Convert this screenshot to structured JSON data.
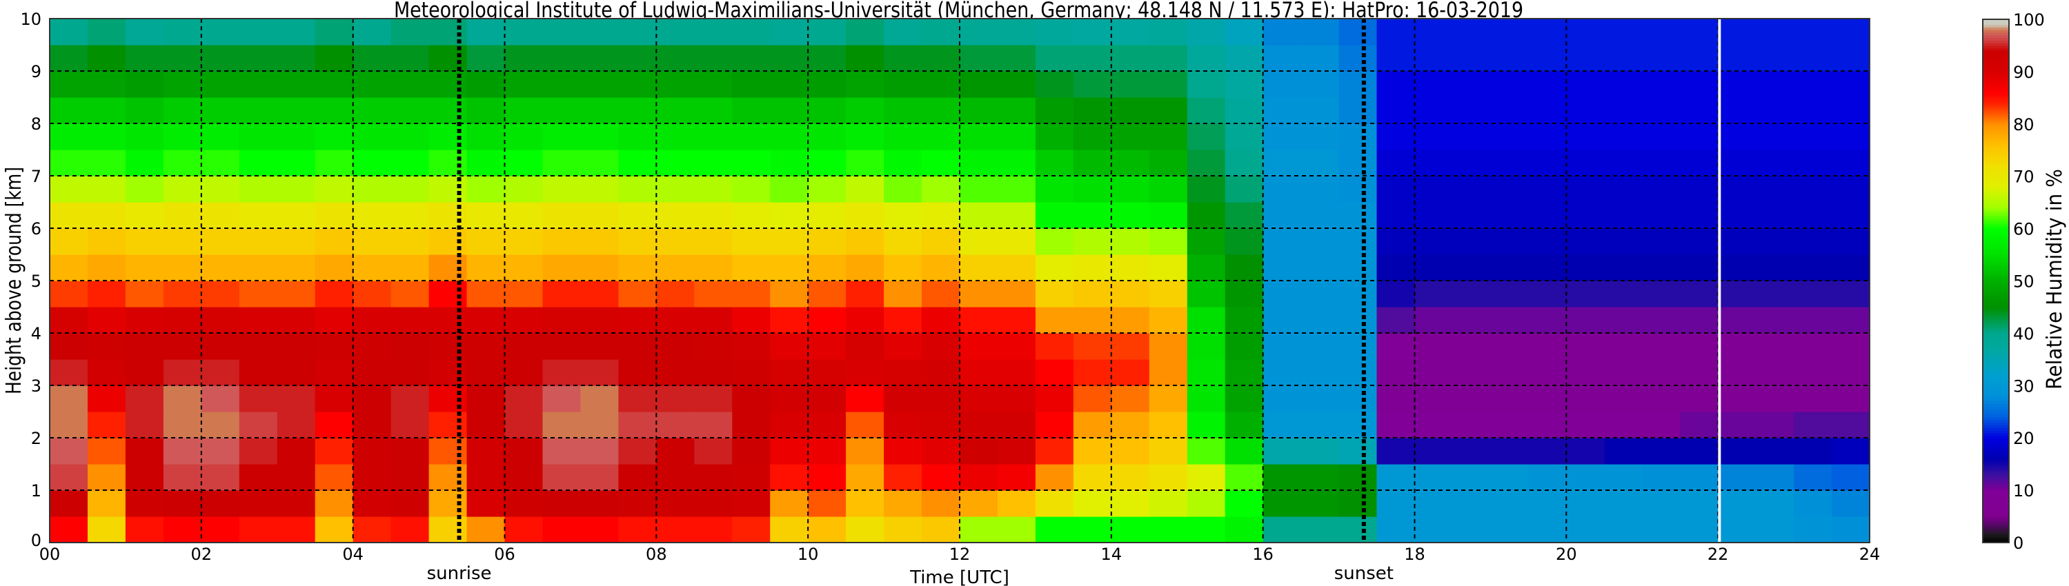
{
  "chart_data": {
    "type": "heatmap",
    "title": "Meteorological Institute of Ludwig-Maximilians-Universität (München, Germany; 48.148 N / 11.573 E):    HatPro: 16-03-2019",
    "xlabel": "Time [UTC]",
    "ylabel": "Height above ground [km]",
    "colorbar_label": "Relative Humidity in %",
    "xlim": [
      0,
      24
    ],
    "ylim": [
      0,
      10
    ],
    "clim": [
      0,
      100
    ],
    "grid": true,
    "x_tick_labels": [
      "00",
      "02",
      "04",
      "06",
      "08",
      "10",
      "12",
      "14",
      "16",
      "18",
      "20",
      "22",
      "24"
    ],
    "x_tick_values": [
      0,
      2,
      4,
      6,
      8,
      10,
      12,
      14,
      16,
      18,
      20,
      22,
      24
    ],
    "y_tick_labels": [
      "0",
      "1",
      "2",
      "3",
      "4",
      "5",
      "6",
      "7",
      "8",
      "9",
      "10"
    ],
    "colorbar_tick_labels": [
      "0",
      "10",
      "20",
      "30",
      "40",
      "50",
      "60",
      "70",
      "80",
      "90",
      "100"
    ],
    "annotations": [
      {
        "label": "sunrise",
        "time": 5.4,
        "style": "dotted-black"
      },
      {
        "label": "sunset",
        "time": 17.33,
        "style": "dotted-black"
      }
    ],
    "marker_line": {
      "time": 22.02,
      "color": "#ffffff"
    },
    "time_bin_start_utc": [
      0,
      0.5,
      1,
      1.5,
      2,
      2.5,
      3,
      3.5,
      4,
      4.5,
      5,
      5.5,
      6,
      6.5,
      7,
      7.5,
      8,
      8.5,
      9,
      9.5,
      10,
      10.5,
      11,
      11.5,
      12,
      12.5,
      13,
      13.5,
      14,
      14.5,
      15,
      15.5,
      16,
      16.5,
      17,
      17.5,
      18,
      18.5,
      19,
      19.5,
      20,
      20.5,
      21,
      21.5,
      22,
      22.5,
      23,
      23.5
    ],
    "height_bin_center_km": [
      0.25,
      0.75,
      1.25,
      1.75,
      2.25,
      2.75,
      3.25,
      3.75,
      4.25,
      4.75,
      5.25,
      5.75,
      6.25,
      6.75,
      7.25,
      7.75,
      8.25,
      8.75,
      9.25,
      9.75
    ],
    "relative_humidity_percent": [
      [
        86,
        94,
        96,
        97,
        98,
        98,
        95,
        94,
        91,
        83,
        77,
        74,
        71,
        66,
        61,
        57,
        53,
        48,
        44,
        40
      ],
      [
        73,
        77,
        80,
        82,
        84,
        88,
        92,
        93,
        89,
        84,
        78,
        75,
        71,
        66,
        61,
        57,
        53,
        48,
        45,
        41
      ],
      [
        85,
        93,
        94,
        94,
        95,
        95,
        94,
        94,
        90,
        82,
        77,
        74,
        70,
        64,
        59,
        56,
        52,
        47,
        44,
        39
      ],
      [
        86,
        94,
        96,
        97,
        98,
        98,
        95,
        94,
        91,
        83,
        77,
        74,
        71,
        66,
        61,
        57,
        53,
        48,
        44,
        40
      ],
      [
        86,
        94,
        96,
        97,
        98,
        97,
        95,
        94,
        91,
        83,
        77,
        74,
        71,
        66,
        61,
        57,
        53,
        48,
        44,
        40
      ],
      [
        85,
        93,
        94,
        95,
        96,
        95,
        94,
        94,
        90,
        82,
        77,
        74,
        70,
        65,
        60,
        56,
        53,
        48,
        44,
        40
      ],
      [
        85,
        93,
        94,
        94,
        95,
        95,
        94,
        94,
        90,
        82,
        77,
        74,
        70,
        65,
        60,
        56,
        53,
        48,
        44,
        40
      ],
      [
        76,
        80,
        82,
        84,
        86,
        90,
        92,
        93,
        89,
        84,
        78,
        75,
        71,
        66,
        61,
        57,
        53,
        48,
        45,
        41
      ],
      [
        84,
        92,
        93,
        93,
        94,
        94,
        94,
        93,
        90,
        83,
        77,
        74,
        70,
        65,
        60,
        56,
        53,
        48,
        44,
        40
      ],
      [
        85,
        93,
        94,
        94,
        95,
        95,
        94,
        94,
        90,
        82,
        77,
        74,
        70,
        65,
        60,
        56,
        53,
        48,
        44,
        41
      ],
      [
        74,
        78,
        80,
        82,
        84,
        88,
        92,
        93,
        90,
        86,
        80,
        75,
        71,
        66,
        61,
        57,
        53,
        48,
        45,
        41
      ],
      [
        80,
        90,
        92,
        92,
        94,
        94,
        94,
        93,
        90,
        82,
        77,
        74,
        70,
        64,
        59,
        55,
        52,
        47,
        43,
        39
      ],
      [
        85,
        93,
        94,
        94,
        95,
        95,
        94,
        94,
        90,
        82,
        77,
        74,
        70,
        65,
        60,
        56,
        53,
        48,
        44,
        40
      ],
      [
        86,
        94,
        96,
        97,
        98,
        97,
        95,
        94,
        91,
        84,
        78,
        75,
        71,
        66,
        61,
        57,
        53,
        48,
        44,
        40
      ],
      [
        86,
        94,
        96,
        97,
        98,
        98,
        95,
        94,
        91,
        84,
        78,
        75,
        71,
        66,
        61,
        57,
        53,
        48,
        44,
        40
      ],
      [
        85,
        93,
        94,
        95,
        96,
        95,
        94,
        94,
        90,
        82,
        77,
        74,
        70,
        65,
        60,
        56,
        53,
        48,
        44,
        40
      ],
      [
        85,
        93,
        94,
        94,
        96,
        95,
        94,
        94,
        90,
        83,
        77,
        74,
        70,
        65,
        60,
        56,
        53,
        48,
        44,
        40
      ],
      [
        85,
        93,
        94,
        95,
        96,
        95,
        94,
        93,
        90,
        82,
        77,
        74,
        70,
        65,
        60,
        56,
        53,
        48,
        44,
        40
      ],
      [
        84,
        92,
        93,
        94,
        94,
        94,
        93,
        92,
        88,
        82,
        76,
        73,
        69,
        64,
        60,
        56,
        52,
        47,
        44,
        40
      ],
      [
        74,
        79,
        85,
        88,
        90,
        92,
        91,
        89,
        85,
        80,
        76,
        73,
        68,
        63,
        59,
        56,
        52,
        47,
        44,
        39
      ],
      [
        76,
        82,
        86,
        88,
        90,
        92,
        91,
        89,
        86,
        82,
        77,
        74,
        69,
        64,
        60,
        56,
        52,
        47,
        44,
        40
      ],
      [
        72,
        76,
        78,
        80,
        82,
        86,
        90,
        91,
        88,
        84,
        78,
        75,
        70,
        66,
        61,
        57,
        53,
        48,
        45,
        41
      ],
      [
        74,
        78,
        84,
        88,
        90,
        92,
        91,
        89,
        85,
        80,
        76,
        73,
        68,
        63,
        59,
        56,
        52,
        47,
        44,
        39
      ],
      [
        75,
        80,
        86,
        89,
        91,
        92,
        92,
        90,
        88,
        82,
        77,
        74,
        69,
        64,
        60,
        56,
        52,
        47,
        44,
        40
      ],
      [
        64,
        78,
        88,
        93,
        92,
        90,
        89,
        88,
        85,
        80,
        74,
        70,
        66,
        62,
        58,
        55,
        51,
        46,
        43,
        39
      ],
      [
        64,
        76,
        87,
        92,
        92,
        90,
        89,
        88,
        85,
        80,
        74,
        70,
        66,
        62,
        58,
        55,
        51,
        46,
        43,
        39
      ],
      [
        60,
        72,
        80,
        84,
        86,
        88,
        86,
        84,
        79,
        74,
        69,
        64,
        59,
        56,
        53,
        50,
        47,
        44,
        41,
        38
      ],
      [
        60,
        68,
        73,
        76,
        79,
        82,
        84,
        83,
        79,
        75,
        70,
        65,
        59,
        55,
        51,
        48,
        46,
        43,
        41,
        37
      ],
      [
        60,
        68,
        73,
        76,
        78,
        81,
        84,
        83,
        79,
        75,
        70,
        65,
        59,
        55,
        51,
        48,
        46,
        43,
        41,
        37
      ],
      [
        60,
        67,
        72,
        74,
        76,
        78,
        80,
        80,
        77,
        74,
        69,
        64,
        58,
        54,
        50,
        48,
        46,
        43,
        41,
        38
      ],
      [
        60,
        65,
        68,
        62,
        58,
        56,
        56,
        55,
        55,
        52,
        50,
        48,
        46,
        44,
        43,
        42,
        41,
        40,
        38,
        36
      ],
      [
        58,
        60,
        62,
        55,
        50,
        48,
        48,
        47,
        47,
        46,
        45,
        44,
        43,
        41,
        40,
        39,
        38,
        37,
        36,
        34
      ],
      [
        40,
        46,
        46,
        36,
        30,
        29,
        29,
        29,
        29,
        29,
        29,
        29,
        29,
        29,
        30,
        29,
        29,
        28,
        28,
        27
      ],
      [
        40,
        46,
        46,
        36,
        30,
        29,
        29,
        29,
        29,
        29,
        29,
        29,
        29,
        29,
        30,
        29,
        29,
        28,
        28,
        27
      ],
      [
        40,
        45,
        45,
        35,
        30,
        29,
        29,
        29,
        29,
        29,
        29,
        29,
        29,
        28,
        28,
        28,
        27,
        27,
        26,
        25
      ],
      [
        30,
        30,
        30,
        15,
        10,
        9,
        9,
        10,
        12,
        15,
        16,
        17,
        18,
        18,
        19,
        20,
        20,
        20,
        21,
        21
      ],
      [
        30,
        30,
        30,
        15,
        10,
        8,
        8,
        9,
        11,
        14,
        16,
        17,
        18,
        18,
        19,
        20,
        20,
        20,
        21,
        21
      ],
      [
        30,
        30,
        30,
        15,
        10,
        8,
        8,
        9,
        11,
        14,
        16,
        17,
        18,
        18,
        19,
        20,
        20,
        20,
        21,
        21
      ],
      [
        30,
        30,
        30,
        15,
        10,
        8,
        8,
        9,
        11,
        14,
        16,
        17,
        18,
        18,
        19,
        20,
        20,
        20,
        21,
        21
      ],
      [
        30,
        30,
        29,
        15,
        10,
        8,
        8,
        9,
        11,
        14,
        16,
        17,
        18,
        18,
        19,
        20,
        20,
        20,
        21,
        21
      ],
      [
        30,
        30,
        29,
        15,
        10,
        8,
        8,
        9,
        11,
        14,
        16,
        17,
        18,
        18,
        19,
        20,
        20,
        20,
        21,
        21
      ],
      [
        30,
        30,
        29,
        16,
        10,
        8,
        8,
        9,
        11,
        14,
        16,
        17,
        18,
        18,
        19,
        20,
        20,
        20,
        21,
        21
      ],
      [
        30,
        30,
        28,
        16,
        10,
        8,
        8,
        9,
        11,
        14,
        16,
        17,
        18,
        18,
        19,
        20,
        20,
        20,
        21,
        21
      ],
      [
        30,
        30,
        28,
        16,
        11,
        8,
        8,
        9,
        11,
        14,
        16,
        17,
        18,
        18,
        19,
        20,
        20,
        20,
        21,
        21
      ],
      [
        30,
        30,
        27,
        16,
        11,
        9,
        9,
        9,
        11,
        14,
        16,
        17,
        18,
        18,
        19,
        20,
        20,
        20,
        21,
        21
      ],
      [
        30,
        30,
        27,
        16,
        11,
        9,
        9,
        9,
        11,
        14,
        16,
        17,
        18,
        18,
        19,
        20,
        20,
        20,
        21,
        21
      ],
      [
        29,
        28,
        25,
        16,
        12,
        9,
        9,
        9,
        11,
        14,
        16,
        17,
        18,
        18,
        19,
        20,
        20,
        20,
        21,
        21
      ],
      [
        28,
        27,
        24,
        17,
        12,
        9,
        9,
        9,
        11,
        14,
        16,
        17,
        18,
        18,
        19,
        20,
        20,
        20,
        21,
        21
      ]
    ],
    "colormap": [
      [
        0,
        "#000000"
      ],
      [
        1.5,
        "#1a1a1a"
      ],
      [
        3,
        "#4a0a5a"
      ],
      [
        5,
        "#800090"
      ],
      [
        10,
        "#800098"
      ],
      [
        13,
        "#3a10a0"
      ],
      [
        16,
        "#0000b0"
      ],
      [
        20,
        "#0000e0"
      ],
      [
        24,
        "#0060e0"
      ],
      [
        28,
        "#0090d8"
      ],
      [
        32,
        "#00a0d0"
      ],
      [
        37,
        "#00a8a0"
      ],
      [
        40,
        "#00a890"
      ],
      [
        45,
        "#009000"
      ],
      [
        50,
        "#00b000"
      ],
      [
        55,
        "#00e000"
      ],
      [
        60,
        "#00ff00"
      ],
      [
        64,
        "#a0ff00"
      ],
      [
        68,
        "#e0f000"
      ],
      [
        72,
        "#f0e000"
      ],
      [
        76,
        "#ffc000"
      ],
      [
        80,
        "#ff9000"
      ],
      [
        84,
        "#ff2000"
      ],
      [
        86,
        "#ff0000"
      ],
      [
        90,
        "#d80000"
      ],
      [
        94,
        "#cc0000"
      ],
      [
        96,
        "#d04040"
      ],
      [
        97,
        "#d05858"
      ],
      [
        98,
        "#d07850"
      ],
      [
        99,
        "#ccccc0"
      ],
      [
        100,
        "#ccccc0"
      ]
    ]
  }
}
